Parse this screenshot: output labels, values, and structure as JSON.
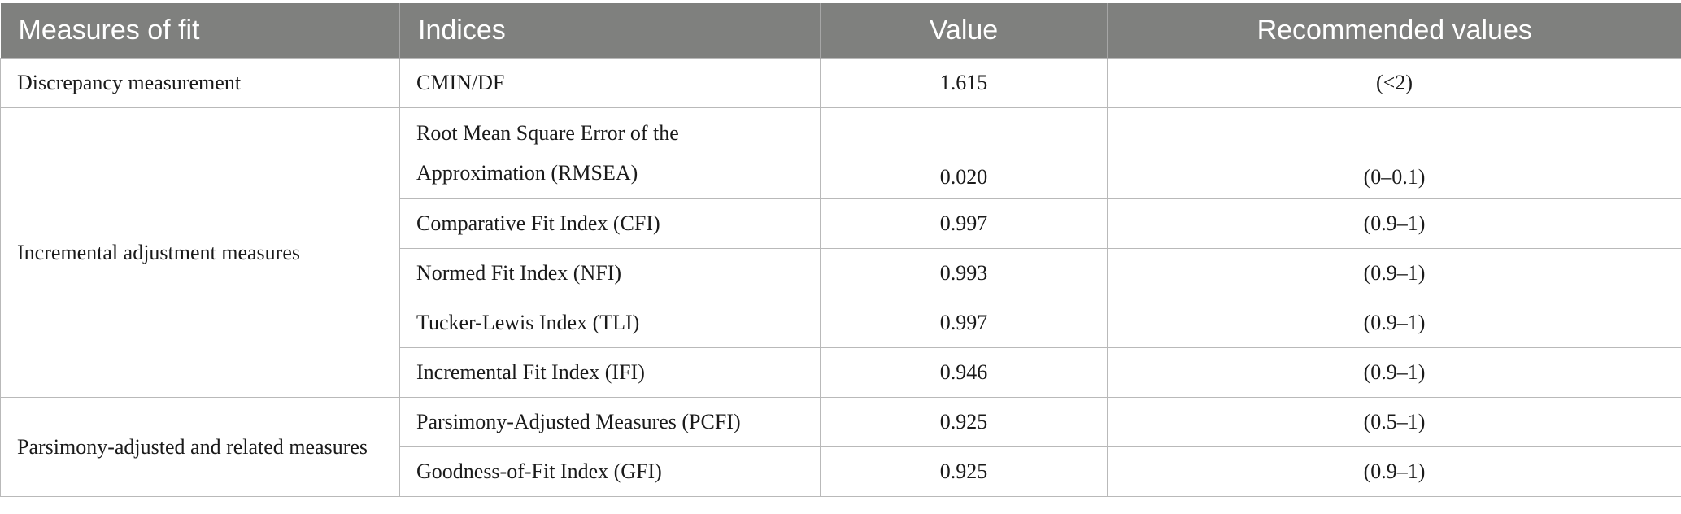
{
  "table": {
    "headers": {
      "measures": "Measures of fit",
      "indices": "Indices",
      "value": "Value",
      "recommended": "Recommended values"
    },
    "groups": {
      "discrepancy": "Discrepancy measurement",
      "incremental": "Incremental adjustment measures",
      "parsimony": "Parsimony-adjusted and related measures"
    },
    "rows": [
      {
        "index": "CMIN/DF",
        "value": "1.615",
        "recommended": "(<2)"
      },
      {
        "index": "Root Mean Square Error of the Approximation (RMSEA)",
        "value": "0.020",
        "recommended": "(0–0.1)"
      },
      {
        "index": "Comparative Fit Index (CFI)",
        "value": "0.997",
        "recommended": "(0.9–1)"
      },
      {
        "index": "Normed Fit Index (NFI)",
        "value": "0.993",
        "recommended": "(0.9–1)"
      },
      {
        "index": "Tucker-Lewis Index (TLI)",
        "value": "0.997",
        "recommended": "(0.9–1)"
      },
      {
        "index": "Incremental Fit Index (IFI)",
        "value": "0.946",
        "recommended": "(0.9–1)"
      },
      {
        "index": "Parsimony-Adjusted Measures (PCFI)",
        "value": "0.925",
        "recommended": "(0.5–1)"
      },
      {
        "index": "Goodness-of-Fit Index (GFI)",
        "value": "0.925",
        "recommended": "(0.9–1)"
      }
    ]
  }
}
